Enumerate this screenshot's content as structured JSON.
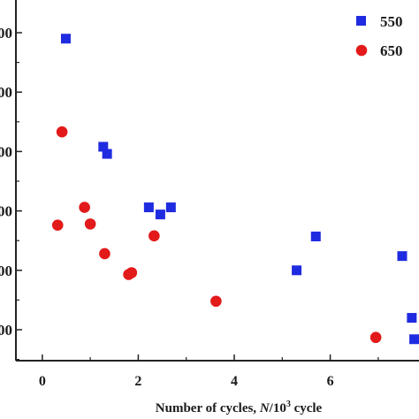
{
  "chart_data": {
    "type": "scatter",
    "xlabel_main": "Number of cycles, ",
    "xlabel_italic": "N",
    "xlabel_unit": "/10",
    "xlabel_sup": "3",
    "xlabel_tail": " cycle",
    "xlim": [
      -0.55,
      7.85
    ],
    "ylim": [
      0,
      6
    ],
    "xticks": [
      {
        "value": 0,
        "label": "0"
      },
      {
        "value": 2,
        "label": "2"
      },
      {
        "value": 4,
        "label": "4"
      },
      {
        "value": 6,
        "label": "6"
      }
    ],
    "yticks": [
      {
        "value": 1,
        "label": "00"
      },
      {
        "value": 2,
        "label": "00"
      },
      {
        "value": 3,
        "label": "00"
      },
      {
        "value": 4,
        "label": "00"
      },
      {
        "value": 5,
        "label": "00"
      },
      {
        "value": 6,
        "label": "00"
      }
    ],
    "legend_position": "top-right",
    "series": [
      {
        "name": "550",
        "marker": "square",
        "color": "#1f2be0",
        "points": [
          [
            0.49,
            5.9
          ],
          [
            1.27,
            4.08
          ],
          [
            1.35,
            3.96
          ],
          [
            2.22,
            3.06
          ],
          [
            2.46,
            2.94
          ],
          [
            2.68,
            3.06
          ],
          [
            5.3,
            2.0
          ],
          [
            5.7,
            2.57
          ],
          [
            7.5,
            2.24
          ],
          [
            7.7,
            1.2
          ],
          [
            7.75,
            0.84
          ]
        ]
      },
      {
        "name": "650",
        "marker": "circle",
        "color": "#e31a1a",
        "points": [
          [
            0.32,
            2.76
          ],
          [
            0.41,
            4.33
          ],
          [
            0.88,
            3.06
          ],
          [
            1.0,
            2.78
          ],
          [
            1.3,
            2.28
          ],
          [
            1.8,
            1.93
          ],
          [
            1.86,
            1.96
          ],
          [
            2.33,
            2.58
          ],
          [
            3.62,
            1.48
          ],
          [
            6.95,
            0.87
          ]
        ]
      }
    ]
  }
}
